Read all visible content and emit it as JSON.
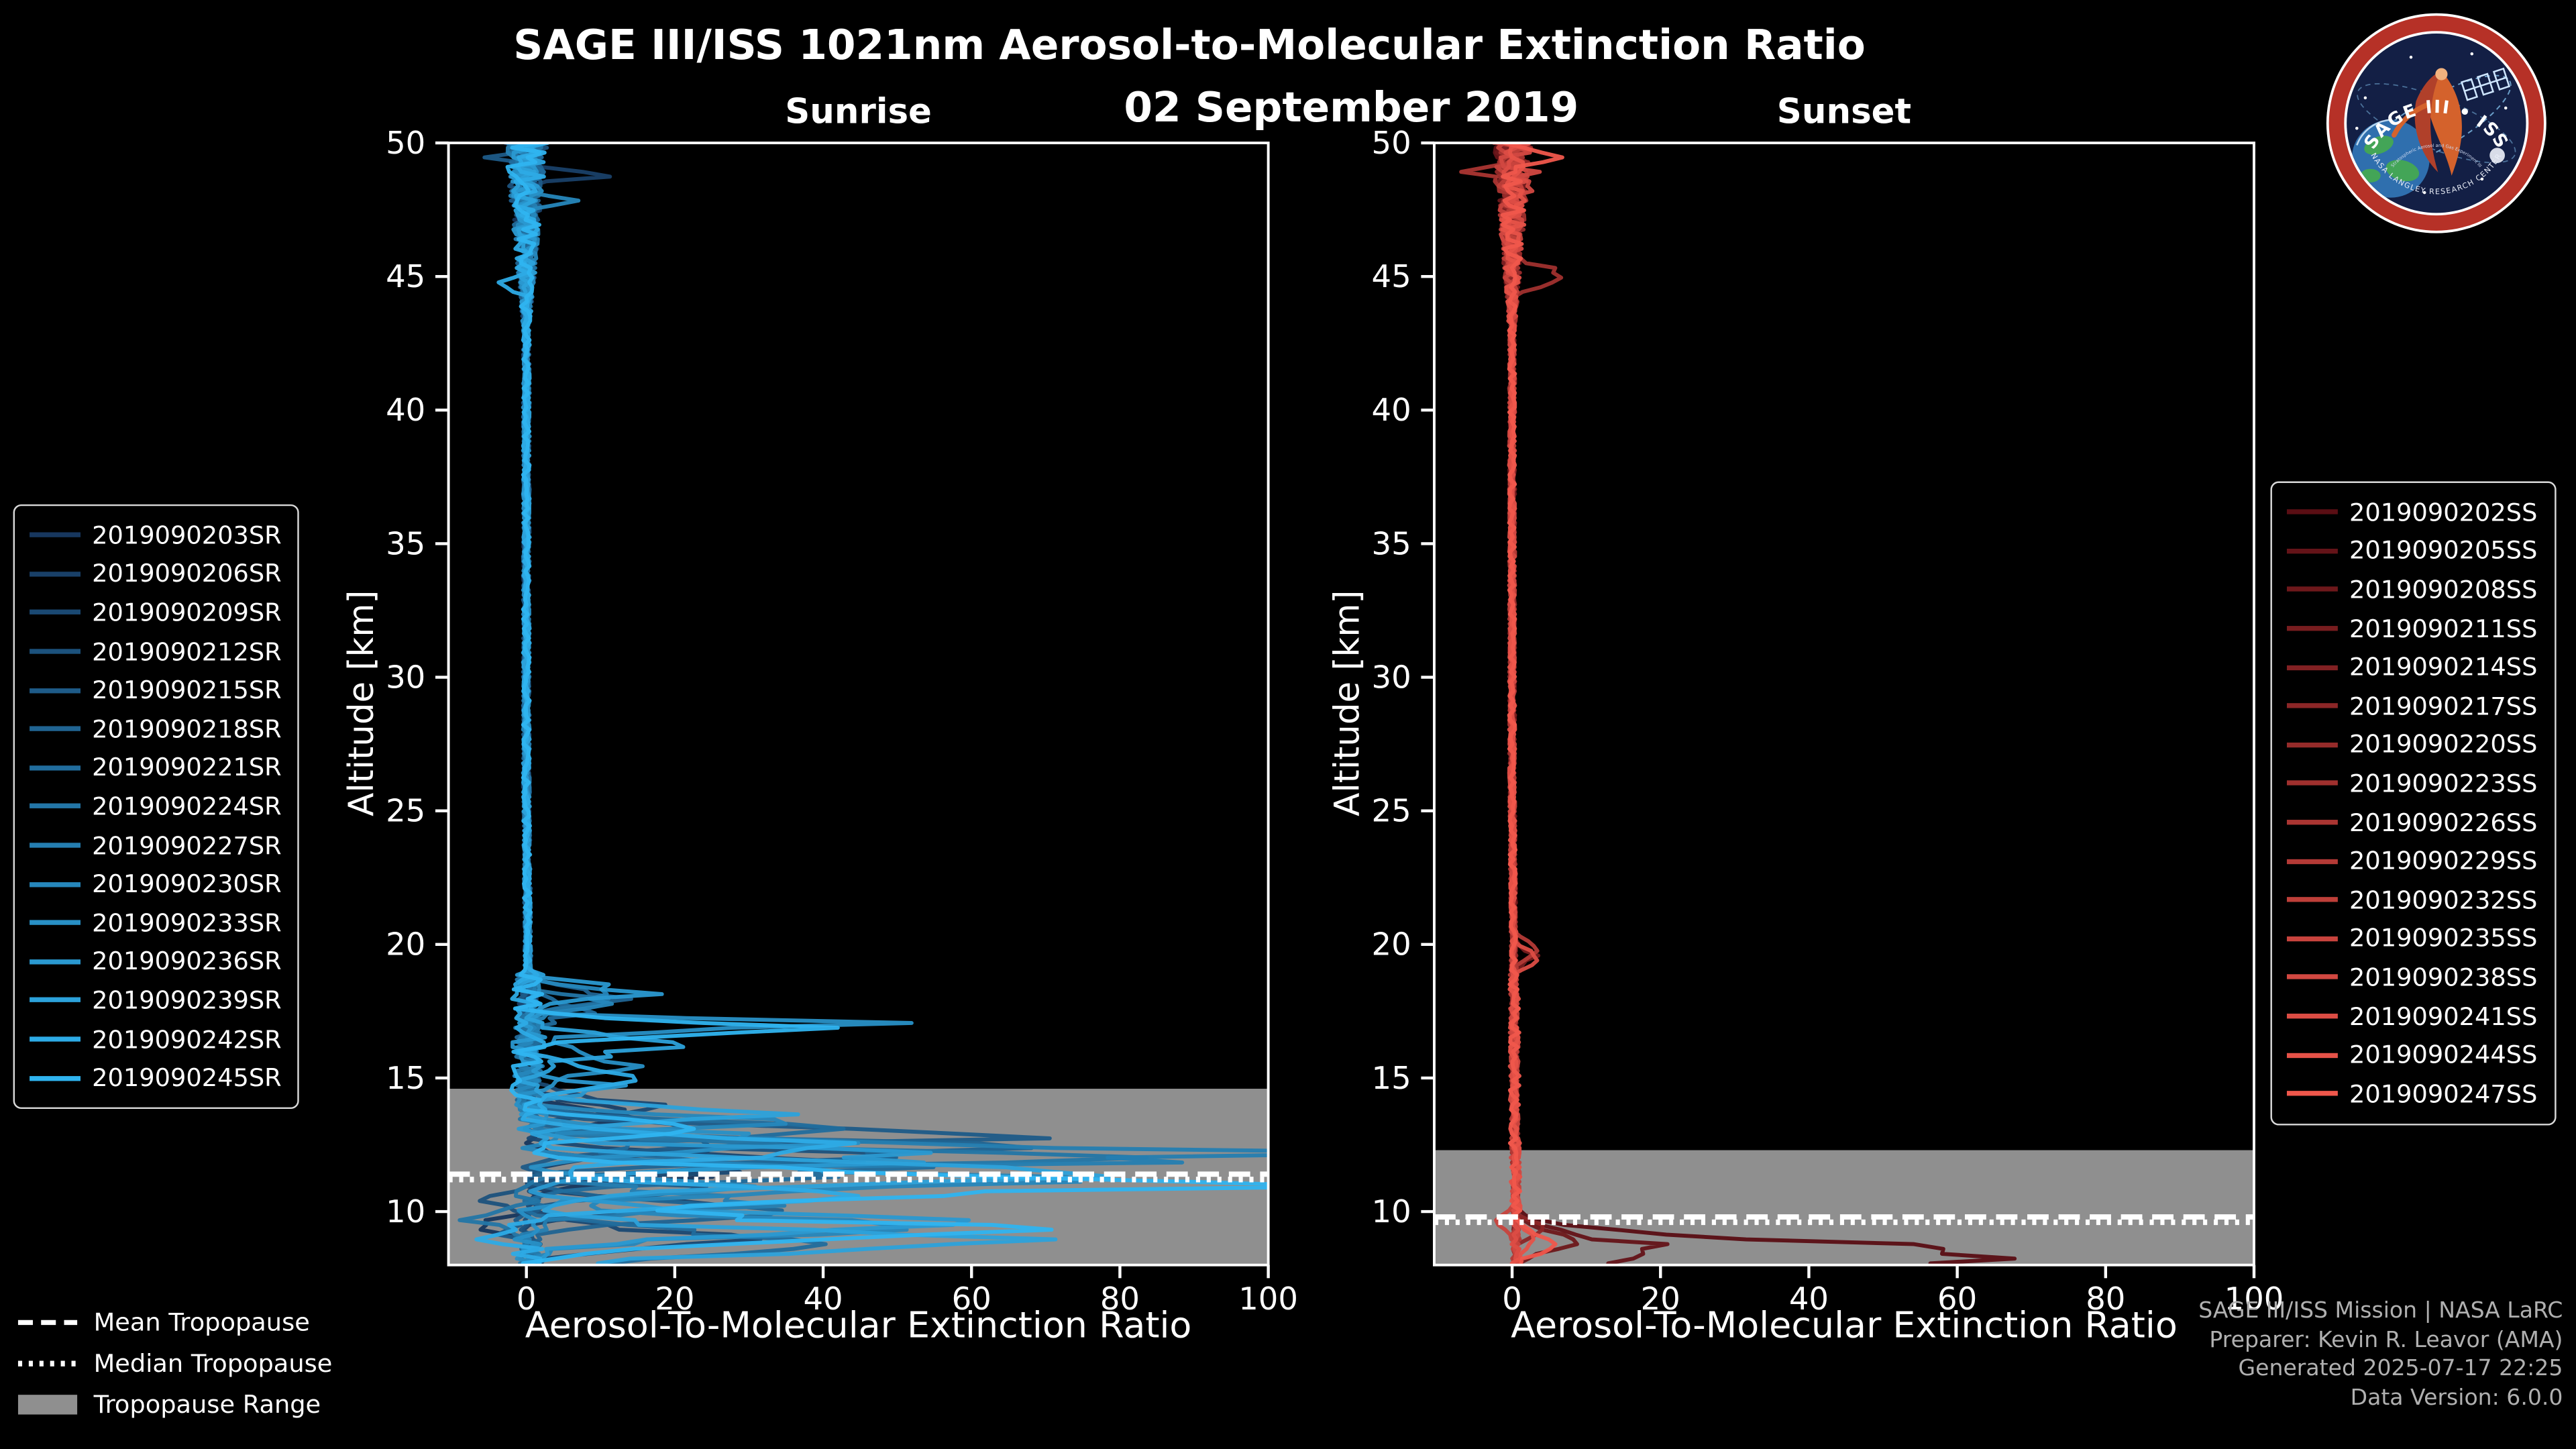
{
  "title": "SAGE III/ISS 1021nm Aerosol-to-Molecular Extinction Ratio",
  "date": "02 September 2019",
  "colors": {
    "background": "#000000",
    "axis": "#ffffff",
    "tropopause_band": "#8f8f8f",
    "tropopause_line": "#ffffff",
    "text_secondary": "#b0b0b0"
  },
  "chart_data": [
    {
      "type": "line",
      "title": "Sunrise",
      "xlabel": "Aerosol-To-Molecular Extinction Ratio",
      "ylabel": "Altitude [km]",
      "xlim": [
        -10.5,
        100
      ],
      "ylim": [
        8,
        50
      ],
      "xticks": [
        0,
        20,
        40,
        60,
        80,
        100
      ],
      "yticks": [
        10,
        15,
        20,
        25,
        30,
        35,
        40,
        45,
        50
      ],
      "tropopause": {
        "mean_km": 11.4,
        "median_km": 11.2,
        "range_km": [
          8,
          14.6
        ]
      },
      "noise": {
        "base": 0.45,
        "low": 2.6,
        "low_below_km": 19,
        "top": 0.35,
        "top_above_km": 43
      },
      "series": [
        {
          "name": "2019090203SR",
          "color": "#17375e",
          "seed": 3,
          "spikes": [
            [
              13.5,
              18,
              0.4
            ],
            [
              11.5,
              25,
              0.5
            ],
            [
              9.5,
              -6,
              0.35
            ]
          ]
        },
        {
          "name": "2019090206SR",
          "color": "#194068",
          "seed": 7,
          "spikes": [
            [
              48.8,
              8,
              0.3
            ],
            [
              13.8,
              12,
              0.4
            ],
            [
              12.5,
              30,
              0.5
            ],
            [
              10.2,
              20,
              0.4
            ]
          ]
        },
        {
          "name": "2019090209SR",
          "color": "#1a4973",
          "seed": 11,
          "spikes": [
            [
              14.0,
              15,
              0.5
            ],
            [
              11.8,
              35,
              0.5
            ],
            [
              9.0,
              25,
              0.5
            ]
          ]
        },
        {
          "name": "2019090212SR",
          "color": "#1c527d",
          "seed": 19,
          "spikes": [
            [
              13.2,
              22,
              0.4
            ],
            [
              12.0,
              45,
              0.5
            ],
            [
              10.5,
              -7,
              0.35
            ]
          ]
        },
        {
          "name": "2019090215SR",
          "color": "#1e5b88",
          "seed": 23,
          "spikes": [
            [
              49.4,
              -5,
              0.3
            ],
            [
              12.8,
              55,
              0.5
            ],
            [
              10.8,
              20,
              0.4
            ],
            [
              9.2,
              -5,
              0.3
            ]
          ]
        },
        {
          "name": "2019090218SR",
          "color": "#206492",
          "seed": 31,
          "spikes": [
            [
              18.0,
              14,
              0.35
            ],
            [
              12.3,
              60,
              0.5
            ],
            [
              10.0,
              30,
              0.5
            ]
          ]
        },
        {
          "name": "2019090221SR",
          "color": "#216d9d",
          "seed": 37,
          "spikes": [
            [
              17.5,
              8,
              0.4
            ],
            [
              13.0,
              35,
              0.5
            ],
            [
              11.5,
              50,
              0.5
            ],
            [
              8.8,
              40,
              0.6
            ]
          ]
        },
        {
          "name": "2019090224SR",
          "color": "#2376a7",
          "seed": 41,
          "spikes": [
            [
              17.9,
              10,
              0.3
            ],
            [
              12.1,
              70,
              0.5
            ],
            [
              9.8,
              -8,
              0.35
            ]
          ]
        },
        {
          "name": "2019090227SR",
          "color": "#257eb1",
          "seed": 43,
          "spikes": [
            [
              12.15,
              105,
              0.5
            ],
            [
              10.4,
              35,
              0.5
            ]
          ]
        },
        {
          "name": "2019090230SR",
          "color": "#2687bc",
          "seed": 47,
          "spikes": [
            [
              47.8,
              6,
              0.3
            ],
            [
              18.0,
              12,
              0.5
            ],
            [
              13.4,
              28,
              0.4
            ],
            [
              11.2,
              60,
              0.6
            ],
            [
              9.4,
              45,
              0.5
            ]
          ]
        },
        {
          "name": "2019090233SR",
          "color": "#2890c6",
          "seed": 53,
          "spikes": [
            [
              17.0,
              43,
              0.28
            ],
            [
              15.5,
              12,
              0.6
            ],
            [
              12.6,
              40,
              0.5
            ],
            [
              10.9,
              25,
              0.4
            ]
          ]
        },
        {
          "name": "2019090236SR",
          "color": "#2a99d1",
          "seed": 59,
          "spikes": [
            [
              18.2,
              16,
              0.35
            ],
            [
              14.6,
              10,
              0.4
            ],
            [
              12.0,
              55,
              0.5
            ],
            [
              9.6,
              50,
              0.6
            ]
          ]
        },
        {
          "name": "2019090239SR",
          "color": "#2ca2db",
          "seed": 61,
          "spikes": [
            [
              16.2,
              18,
              0.5
            ],
            [
              13.6,
              30,
              0.4
            ],
            [
              11.4,
              65,
              0.6
            ],
            [
              8.9,
              55,
              0.6
            ]
          ]
        },
        {
          "name": "2019090242SR",
          "color": "#2dabe6",
          "seed": 67,
          "spikes": [
            [
              44.8,
              -5,
              0.3
            ],
            [
              15.0,
              14,
              0.5
            ],
            [
              12.4,
              48,
              0.5
            ],
            [
              10.6,
              40,
              0.5
            ],
            [
              9.1,
              -6,
              0.3
            ]
          ]
        },
        {
          "name": "2019090245SR",
          "color": "#2fb4f0",
          "seed": 71,
          "spikes": [
            [
              16.8,
              40,
              0.35
            ],
            [
              13.1,
              25,
              0.4
            ],
            [
              11.0,
              95,
              0.6
            ],
            [
              9.3,
              60,
              0.6
            ]
          ]
        }
      ]
    },
    {
      "type": "line",
      "title": "Sunset",
      "xlabel": "Aerosol-To-Molecular Extinction Ratio",
      "ylabel": "Altitude [km]",
      "xlim": [
        -10.5,
        100
      ],
      "ylim": [
        8,
        50
      ],
      "xticks": [
        0,
        20,
        40,
        60,
        80,
        100
      ],
      "yticks": [
        10,
        15,
        20,
        25,
        30,
        35,
        40,
        45,
        50
      ],
      "tropopause": {
        "mean_km": 9.8,
        "median_km": 9.6,
        "range_km": [
          8,
          12.3
        ]
      },
      "noise": {
        "base": 0.4,
        "low": 0.7,
        "low_below_km": 19,
        "top": 0.32,
        "top_above_km": 43
      },
      "series": [
        {
          "name": "2019090202SS",
          "color": "#5a0e14",
          "seed": 5,
          "spikes": [
            [
              8.3,
              60,
              0.8
            ]
          ]
        },
        {
          "name": "2019090205SS",
          "color": "#641318",
          "seed": 13,
          "spikes": [
            [
              8.5,
              22,
              0.7
            ]
          ]
        },
        {
          "name": "2019090208SS",
          "color": "#6e181b",
          "seed": 17,
          "spikes": [
            [
              8.9,
              8,
              0.5
            ]
          ]
        },
        {
          "name": "2019090211SS",
          "color": "#781d1f",
          "seed": 29,
          "spikes": [
            [
              19.6,
              2.5,
              0.4
            ]
          ]
        },
        {
          "name": "2019090214SS",
          "color": "#822123",
          "seed": 71,
          "spikes": []
        },
        {
          "name": "2019090217SS",
          "color": "#8c2627",
          "seed": 73,
          "spikes": [
            [
              9.4,
              3,
              0.4
            ]
          ]
        },
        {
          "name": "2019090220SS",
          "color": "#962b2a",
          "seed": 79,
          "spikes": []
        },
        {
          "name": "2019090223SS",
          "color": "#a0302e",
          "seed": 83,
          "spikes": [
            [
              45,
              7,
              0.5
            ]
          ]
        },
        {
          "name": "2019090226SS",
          "color": "#aa3532",
          "seed": 89,
          "spikes": [
            [
              49.0,
              -5,
              0.3
            ]
          ]
        },
        {
          "name": "2019090229SS",
          "color": "#b43a36",
          "seed": 97,
          "spikes": [
            [
              19.8,
              3,
              0.4
            ]
          ]
        },
        {
          "name": "2019090232SS",
          "color": "#be3f39",
          "seed": 101,
          "spikes": []
        },
        {
          "name": "2019090235SS",
          "color": "#c8433d",
          "seed": 103,
          "spikes": [
            [
              9.6,
              -2.5,
              0.3
            ]
          ]
        },
        {
          "name": "2019090238SS",
          "color": "#d24841",
          "seed": 107,
          "spikes": [
            [
              48.5,
              4,
              0.5
            ]
          ]
        },
        {
          "name": "2019090241SS",
          "color": "#dc4d44",
          "seed": 109,
          "spikes": [
            [
              19.5,
              4,
              0.35
            ]
          ]
        },
        {
          "name": "2019090244SS",
          "color": "#e65248",
          "seed": 113,
          "spikes": [
            [
              9.0,
              3,
              0.4
            ]
          ]
        },
        {
          "name": "2019090247SS",
          "color": "#f0574c",
          "seed": 127,
          "spikes": [
            [
              49.5,
              4,
              0.3
            ],
            [
              8.8,
              5,
              0.5
            ]
          ]
        }
      ]
    }
  ],
  "tropopause_legend": {
    "mean": "Mean Tropopause",
    "median": "Median Tropopause",
    "range": "Tropopause Range"
  },
  "attribution": [
    "SAGE III/ISS Mission | NASA LaRC",
    "Preparer: Kevin R. Leavor (AMA)",
    "Generated 2025-07-17 22:25",
    "Data Version: 6.0.0"
  ],
  "logo": {
    "title": "SAGE III • ISS",
    "subtitle": "Stratospheric Aerosol and Gas Experiment III",
    "footer": "NASA LANGLEY RESEARCH CENTER"
  }
}
